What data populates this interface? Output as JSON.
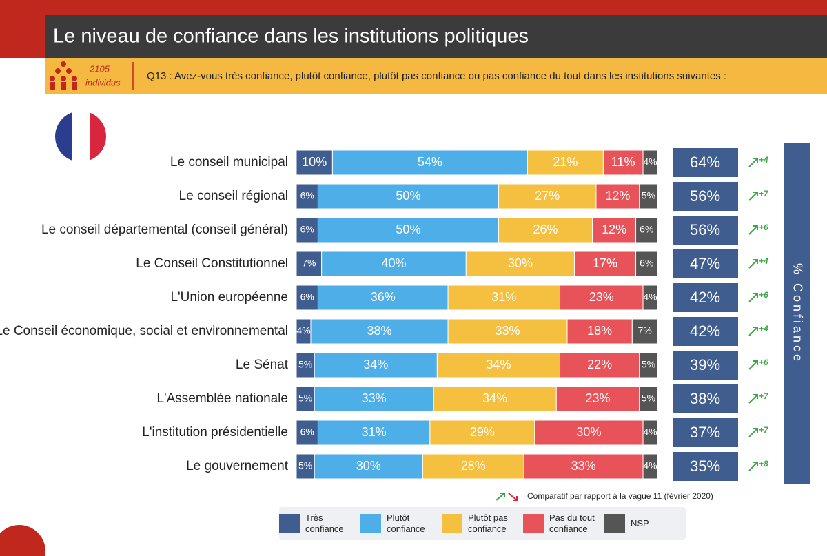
{
  "chart_data": {
    "type": "bar",
    "orientation": "horizontal",
    "stacked": true,
    "title": "Le niveau de confiance dans les institutions politiques",
    "sample_size": "2105",
    "sample_unit": "individus",
    "question": "Q13 : Avez-vous très confiance, plutôt confiance, plutôt pas confiance ou pas confiance du tout dans les institutions suivantes :",
    "xlim": [
      0,
      100
    ],
    "categories": [
      "Le conseil municipal",
      "Le conseil régional",
      "Le conseil départemental (conseil général)",
      "Le Conseil Constitutionnel",
      "L'Union européenne",
      "Le Conseil économique, social et environnemental",
      "Le Sénat",
      "L'Assemblée nationale",
      "L'institution présidentielle",
      "Le gouvernement"
    ],
    "series": [
      {
        "name": "Très confiance",
        "color": "#3f5d8f",
        "values": [
          10,
          6,
          6,
          7,
          6,
          4,
          5,
          5,
          6,
          5
        ],
        "value_labels": [
          "10%",
          "6%",
          "6%",
          "7%",
          "6%",
          "4%",
          "5%",
          "5%",
          "6%",
          "5%"
        ]
      },
      {
        "name": "Plutôt confiance",
        "color": "#4daee8",
        "values": [
          54,
          50,
          50,
          40,
          36,
          38,
          34,
          33,
          31,
          30
        ],
        "value_labels": [
          "54%",
          "50%",
          "50%",
          "40%",
          "36%",
          "38%",
          "34%",
          "33%",
          "31%",
          "30%"
        ]
      },
      {
        "name": "Plutôt pas confiance",
        "color": "#f5bf40",
        "values": [
          21,
          27,
          26,
          30,
          31,
          33,
          34,
          34,
          29,
          28
        ],
        "value_labels": [
          "21%",
          "27%",
          "26%",
          "30%",
          "31%",
          "33%",
          "34%",
          "34%",
          "29%",
          "28%"
        ]
      },
      {
        "name": "Pas du tout confiance",
        "color": "#e8535a",
        "values": [
          11,
          12,
          12,
          17,
          23,
          18,
          22,
          23,
          30,
          33
        ],
        "value_labels": [
          "11%",
          "12%",
          "12%",
          "17%",
          "23%",
          "18%",
          "22%",
          "23%",
          "30%",
          "33%"
        ]
      },
      {
        "name": "NSP",
        "color": "#555555",
        "values": [
          4,
          5,
          6,
          6,
          4,
          7,
          5,
          5,
          4,
          4
        ],
        "value_labels": [
          "4%",
          "5%",
          "6%",
          "6%",
          "4%",
          "7%",
          "5%",
          "5%",
          "4%",
          "4%"
        ]
      }
    ],
    "confidence_title": "% Confiance",
    "confidence_labels": [
      "64%",
      "56%",
      "56%",
      "47%",
      "42%",
      "42%",
      "39%",
      "38%",
      "37%",
      "35%"
    ],
    "change_labels": [
      "+4",
      "+7",
      "+6",
      "+4",
      "+6",
      "+4",
      "+6",
      "+7",
      "+7",
      "+8"
    ],
    "comparison_note": "Comparatif par rapport à la vague 11 (février 2020)"
  }
}
